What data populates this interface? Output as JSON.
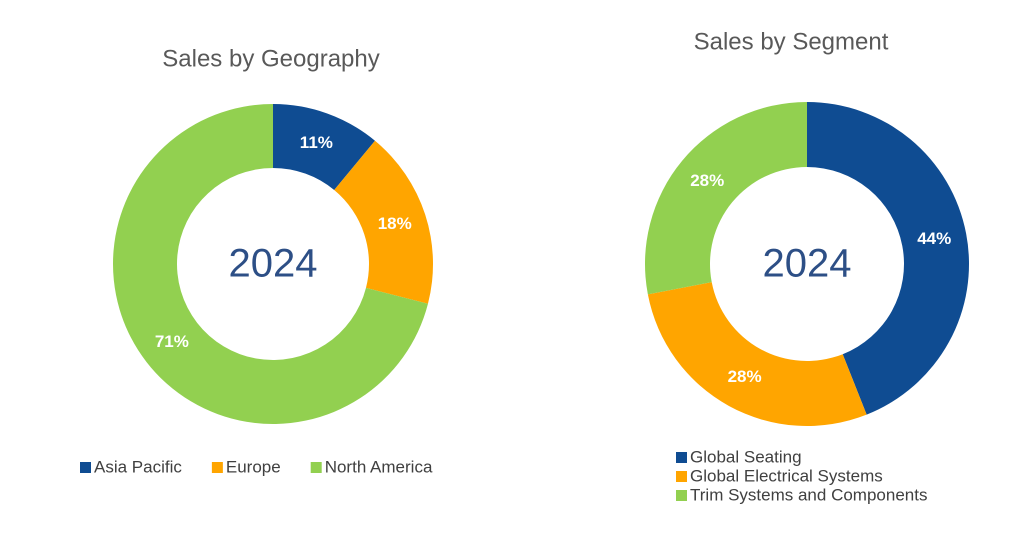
{
  "chart_data": [
    {
      "type": "donut",
      "title": "Sales by Geography",
      "center_label": "2024",
      "categories": [
        "Asia Pacific",
        "Europe",
        "North America"
      ],
      "values": [
        11,
        18,
        71
      ],
      "value_labels": [
        "11%",
        "18%",
        "71%"
      ],
      "colors": [
        "#0f4c92",
        "#ffa500",
        "#92d050"
      ],
      "legend": "bottom",
      "legend_direction": "row"
    },
    {
      "type": "donut",
      "title": "Sales by Segment",
      "center_label": "2024",
      "categories": [
        "Global Seating",
        "Global Electrical Systems",
        "Trim Systems and Components"
      ],
      "values": [
        44,
        28,
        28
      ],
      "value_labels": [
        "44%",
        "28%",
        "28%"
      ],
      "colors": [
        "#0f4c92",
        "#ffa500",
        "#92d050"
      ],
      "legend": "bottom",
      "legend_direction": "column"
    }
  ]
}
